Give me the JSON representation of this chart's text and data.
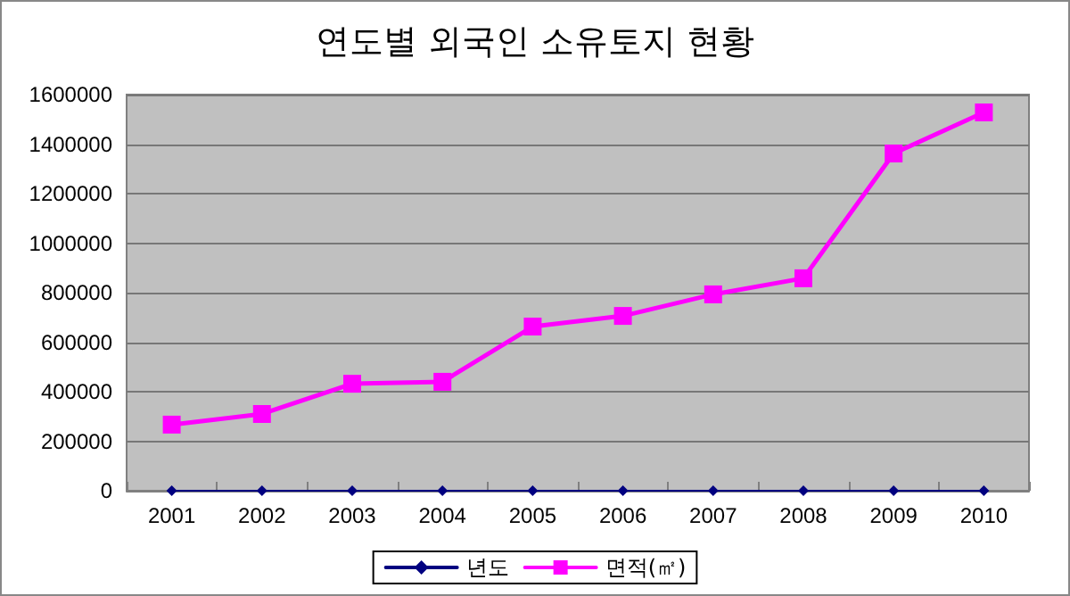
{
  "chart_data": {
    "type": "line",
    "title": "연도별 외국인 소유토지 현황",
    "categories": [
      "2001",
      "2002",
      "2003",
      "2004",
      "2005",
      "2006",
      "2007",
      "2008",
      "2009",
      "2010"
    ],
    "series": [
      {
        "name": "년도",
        "color": "#000080",
        "marker": "diamond",
        "values": [
          0,
          0,
          0,
          0,
          0,
          0,
          0,
          0,
          0,
          0
        ]
      },
      {
        "name": "면적(㎡)",
        "color": "#ff00ff",
        "marker": "square",
        "values": [
          267000,
          310000,
          432000,
          440000,
          663000,
          706000,
          793000,
          858000,
          1362000,
          1528000
        ]
      }
    ],
    "ylim": [
      0,
      1600000
    ],
    "yticks": [
      0,
      200000,
      400000,
      600000,
      800000,
      1000000,
      1200000,
      1400000,
      1600000
    ],
    "grid": "y",
    "legend": "bottom",
    "line_style": "solid"
  }
}
